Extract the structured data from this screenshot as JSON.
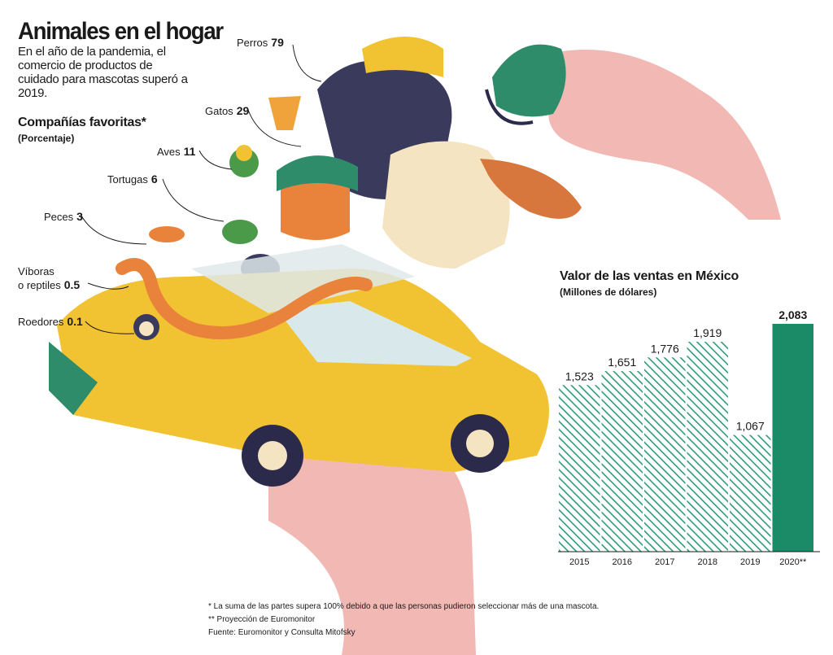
{
  "header": {
    "title": "Animales en el hogar",
    "subtitle": "En el año de la pandemia, el comercio de productos de cuidado para mascotas superó a 2019.",
    "favorites_title": "Compañías favoritas*",
    "favorites_unit": "(Porcentaje)"
  },
  "pets": [
    {
      "name": "Perros",
      "value": "79"
    },
    {
      "name": "Gatos",
      "value": "29"
    },
    {
      "name": "Aves",
      "value": "11"
    },
    {
      "name": "Tortugas",
      "value": "6"
    },
    {
      "name": "Peces",
      "value": "3"
    },
    {
      "name": "Víboras\no reptiles",
      "value": "0.5"
    },
    {
      "name": "Roedores",
      "value": "0.1"
    }
  ],
  "chart_data": {
    "type": "bar",
    "title": "Valor de las ventas en México",
    "subtitle": "(Millones de dólares)",
    "categories": [
      "2015",
      "2016",
      "2017",
      "2018",
      "2019",
      "2020**"
    ],
    "values": [
      1523,
      1651,
      1776,
      1919,
      1067,
      2083
    ],
    "value_labels": [
      "1,523",
      "1,651",
      "1,776",
      "1,919",
      "1,067",
      "2,083"
    ],
    "highlight_index": 5,
    "colors": {
      "hatch": "#2e9a78",
      "highlight": "#1b8a66"
    }
  },
  "footnotes": {
    "note1": "* La suma de las partes supera 100% debido a que las personas pudieron seleccionar más de una mascota.",
    "note2": "** Proyección de Euromonitor",
    "source": "Fuente: Euromonitor y Consulta Mitofsky"
  }
}
